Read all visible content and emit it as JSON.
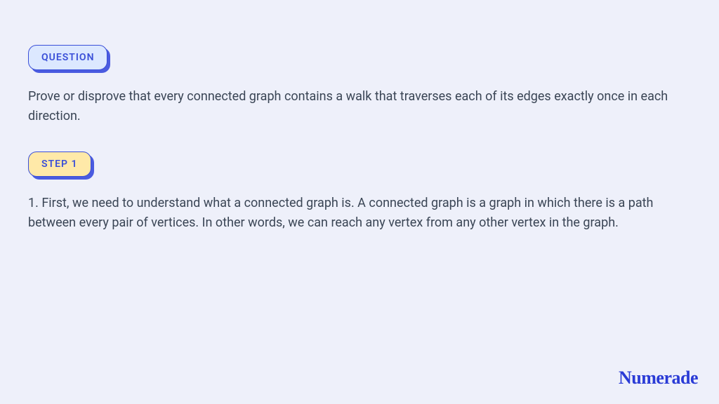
{
  "page": {
    "background_color": "#eef0fa",
    "text_color": "#3a4555",
    "accent_color": "#3a4fd8",
    "shadow_color": "#4a5be0",
    "body_fontsize": 18
  },
  "question_badge": {
    "label": "QUESTION",
    "bg_color": "#dce8ff",
    "border_color": "#3a4fd8",
    "text_color": "#3a4fd8"
  },
  "question_text": "Prove or disprove that every connected graph contains a walk that traverses each of its edges exactly once in each direction.",
  "step_badge": {
    "label": "STEP 1",
    "bg_color": "#ffe9a8",
    "border_color": "#3a4fd8",
    "text_color": "#3a4fd8"
  },
  "step_text": "1. First, we need to understand what a connected graph is. A connected graph is a graph in which there is a path between every pair of vertices. In other words, we can reach any vertex from any other vertex in the graph.",
  "brand": {
    "name": "Numerade",
    "color": "#2a3bd6",
    "fontsize": 26
  }
}
